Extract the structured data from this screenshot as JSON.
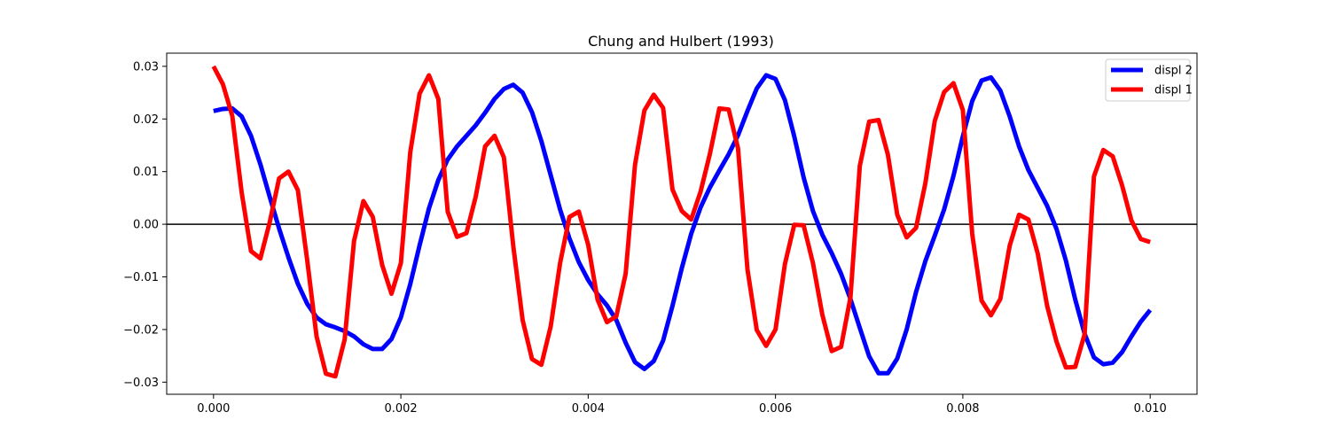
{
  "chart_data": {
    "type": "line",
    "title": "Chung and Hulbert (1993)",
    "xlabel": "",
    "ylabel": "",
    "xlim": [
      -0.0005,
      0.0105
    ],
    "ylim": [
      -0.0323,
      0.0325
    ],
    "x_ticks": [
      0.0,
      0.002,
      0.004,
      0.006,
      0.008,
      0.01
    ],
    "x_tick_labels": [
      "0.000",
      "0.002",
      "0.004",
      "0.006",
      "0.008",
      "0.010"
    ],
    "y_ticks": [
      -0.03,
      -0.02,
      -0.01,
      0.0,
      0.01,
      0.02,
      0.03
    ],
    "y_tick_labels": [
      "−0.03",
      "−0.02",
      "−0.01",
      "0.00",
      "0.01",
      "0.02",
      "0.03"
    ],
    "grid": false,
    "legend_position": "top-right",
    "reference_line": {
      "y": 0.0,
      "color": "#000000"
    },
    "series": [
      {
        "name": "displ 2",
        "color": "#0000ff",
        "x": [
          0.0,
          0.0001,
          0.0002,
          0.0003,
          0.0004,
          0.0005,
          0.0006,
          0.0007,
          0.0008,
          0.0009,
          0.001,
          0.0011,
          0.0012,
          0.0013,
          0.0014,
          0.0015,
          0.0016,
          0.0017,
          0.0018,
          0.0019,
          0.002,
          0.0021,
          0.0022,
          0.0023,
          0.0024,
          0.0025,
          0.0026,
          0.0027,
          0.0028,
          0.0029,
          0.003,
          0.0031,
          0.0032,
          0.0033,
          0.0034,
          0.0035,
          0.0036,
          0.0037,
          0.0038,
          0.0039,
          0.004,
          0.0041,
          0.0042,
          0.0043,
          0.0044,
          0.0045,
          0.0046,
          0.0047,
          0.0048,
          0.0049,
          0.005,
          0.0051,
          0.0052,
          0.0053,
          0.0054,
          0.0055,
          0.0056,
          0.0057,
          0.0058,
          0.0059,
          0.006,
          0.0061,
          0.0062,
          0.0063,
          0.0064,
          0.0065,
          0.0066,
          0.0067,
          0.0068,
          0.0069,
          0.007,
          0.0071,
          0.0072,
          0.0073,
          0.0074,
          0.0075,
          0.0076,
          0.0077,
          0.0078,
          0.0079,
          0.008,
          0.0081,
          0.0082,
          0.0083,
          0.0084,
          0.0085,
          0.0086,
          0.0087,
          0.0088,
          0.0089,
          0.009,
          0.0091,
          0.0092,
          0.0093,
          0.0094,
          0.0095,
          0.0096,
          0.0097,
          0.0098,
          0.0099,
          0.01
        ],
        "y": [
          0.0215,
          0.0219,
          0.022,
          0.0205,
          0.0168,
          0.0114,
          0.0052,
          -0.0008,
          -0.0063,
          -0.0113,
          -0.0151,
          -0.0177,
          -0.019,
          -0.0196,
          -0.0203,
          -0.0213,
          -0.0228,
          -0.0237,
          -0.0237,
          -0.0218,
          -0.0177,
          -0.0114,
          -0.004,
          0.003,
          0.0084,
          0.0123,
          0.0148,
          0.0168,
          0.0188,
          0.0212,
          0.0238,
          0.0257,
          0.0265,
          0.025,
          0.0213,
          0.0158,
          0.0093,
          0.0028,
          -0.0027,
          -0.0072,
          -0.0106,
          -0.0133,
          -0.0154,
          -0.0182,
          -0.0225,
          -0.0262,
          -0.0275,
          -0.026,
          -0.0221,
          -0.0155,
          -0.0083,
          -0.0018,
          0.0032,
          0.007,
          0.0102,
          0.0133,
          0.0169,
          0.0215,
          0.0258,
          0.0283,
          0.0276,
          0.0236,
          0.0167,
          0.0089,
          0.0025,
          -0.002,
          -0.0055,
          -0.0094,
          -0.0142,
          -0.0197,
          -0.0251,
          -0.0283,
          -0.0283,
          -0.0255,
          -0.02,
          -0.0129,
          -0.007,
          -0.0022,
          0.0028,
          0.0092,
          0.0167,
          0.0234,
          0.0273,
          0.0279,
          0.0254,
          0.0205,
          0.0148,
          0.0103,
          0.0069,
          0.0035,
          -0.0009,
          -0.0069,
          -0.0143,
          -0.0208,
          -0.0253,
          -0.0266,
          -0.0263,
          -0.0243,
          -0.0213,
          -0.0185,
          -0.0163
        ]
      },
      {
        "name": "displ 1",
        "color": "#ff0000",
        "x": [
          0.0,
          0.0001,
          0.0002,
          0.0003,
          0.0004,
          0.0005,
          0.0006,
          0.0007,
          0.0008,
          0.0009,
          0.001,
          0.0011,
          0.0012,
          0.0013,
          0.0014,
          0.0015,
          0.0016,
          0.0017,
          0.0018,
          0.0019,
          0.002,
          0.0021,
          0.0022,
          0.0023,
          0.0024,
          0.0025,
          0.0026,
          0.0027,
          0.0028,
          0.0029,
          0.003,
          0.0031,
          0.0032,
          0.0033,
          0.0034,
          0.0035,
          0.0036,
          0.0037,
          0.0038,
          0.0039,
          0.004,
          0.0041,
          0.0042,
          0.0043,
          0.0044,
          0.0045,
          0.0046,
          0.0047,
          0.0048,
          0.0049,
          0.005,
          0.0051,
          0.0052,
          0.0053,
          0.0054,
          0.0055,
          0.0056,
          0.0057,
          0.0058,
          0.0059,
          0.006,
          0.0061,
          0.0062,
          0.0063,
          0.0064,
          0.0065,
          0.0066,
          0.0067,
          0.0068,
          0.0069,
          0.007,
          0.0071,
          0.0072,
          0.0073,
          0.0074,
          0.0075,
          0.0076,
          0.0077,
          0.0078,
          0.0079,
          0.008,
          0.0081,
          0.0082,
          0.0083,
          0.0084,
          0.0085,
          0.0086,
          0.0087,
          0.0088,
          0.0089,
          0.009,
          0.0091,
          0.0092,
          0.0093,
          0.0094,
          0.0095,
          0.0096,
          0.0097,
          0.0098,
          0.0099,
          0.01
        ],
        "y": [
          0.03,
          0.0266,
          0.0206,
          0.0061,
          -0.0051,
          -0.0065,
          0.0004,
          0.0087,
          0.01,
          0.0065,
          -0.0068,
          -0.0213,
          -0.0284,
          -0.0289,
          -0.0219,
          -0.0032,
          0.0044,
          0.0014,
          -0.0077,
          -0.0132,
          -0.0074,
          0.0136,
          0.0248,
          0.0283,
          0.0238,
          0.0024,
          -0.0024,
          -0.0017,
          0.0053,
          0.0148,
          0.0168,
          0.0127,
          -0.0041,
          -0.0182,
          -0.0256,
          -0.0267,
          -0.0194,
          -0.0074,
          0.0014,
          0.0024,
          -0.0039,
          -0.0143,
          -0.0186,
          -0.0175,
          -0.0094,
          0.0113,
          0.0216,
          0.0246,
          0.0221,
          0.0066,
          0.0025,
          0.0009,
          0.0062,
          0.0134,
          0.022,
          0.0218,
          0.0144,
          -0.0085,
          -0.0201,
          -0.0231,
          -0.02,
          -0.0076,
          -0.0001,
          -0.0002,
          -0.0074,
          -0.0172,
          -0.0241,
          -0.0233,
          -0.0139,
          0.0111,
          0.0195,
          0.0198,
          0.0132,
          0.0018,
          -0.0025,
          -0.0007,
          0.0078,
          0.0196,
          0.0251,
          0.0268,
          0.0217,
          -0.0018,
          -0.0145,
          -0.0173,
          -0.0142,
          -0.0041,
          0.0018,
          0.0009,
          -0.0056,
          -0.0155,
          -0.0223,
          -0.0272,
          -0.0271,
          -0.0209,
          0.0091,
          0.0141,
          0.0129,
          0.0074,
          0.0007,
          -0.0028,
          -0.0034
        ]
      }
    ]
  }
}
